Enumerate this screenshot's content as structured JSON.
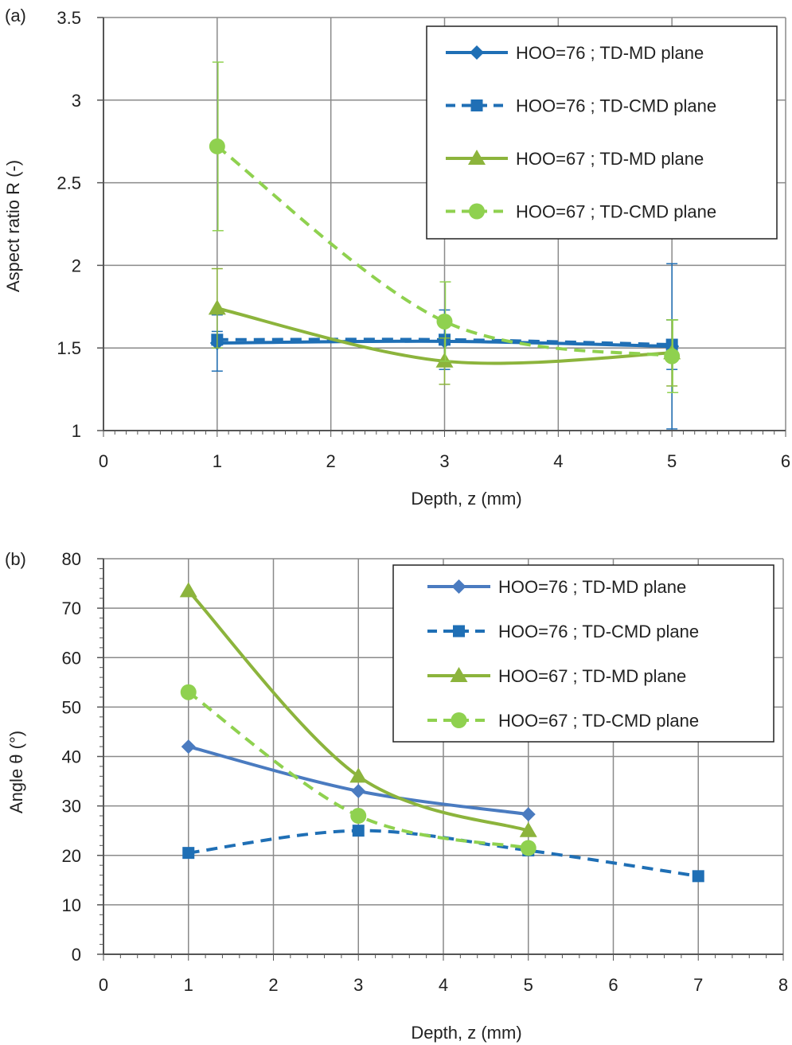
{
  "chart_data": [
    {
      "panel_label": "(a)",
      "type": "line",
      "xlabel": "Depth, z (mm)",
      "ylabel": "Aspect ratio R (-)",
      "xlim": [
        0,
        6
      ],
      "ylim": [
        1,
        3.5
      ],
      "xticks": [
        "0",
        "1",
        "2",
        "3",
        "4",
        "5",
        "6"
      ],
      "yticks": [
        "1",
        "1.5",
        "2",
        "2.5",
        "3",
        "3.5"
      ],
      "grid": true,
      "legend_position": "top-right",
      "series": [
        {
          "name": "HOO=76 ; TD-MD plane",
          "x": [
            1,
            3,
            5
          ],
          "y": [
            1.53,
            1.54,
            1.51
          ],
          "yerr": [
            0.17,
            0.15,
            0.5
          ],
          "color": "#1f6fb5",
          "dash": "solid",
          "marker": "diamond"
        },
        {
          "name": "HOO=76 ; TD-CMD plane",
          "x": [
            1,
            3,
            5
          ],
          "y": [
            1.55,
            1.55,
            1.52
          ],
          "yerr": [
            0.05,
            0.18,
            0.15
          ],
          "color": "#1f6fb5",
          "dash": "dashed",
          "marker": "square"
        },
        {
          "name": "HOO=67 ; TD-MD plane",
          "x": [
            1,
            3,
            5
          ],
          "y": [
            1.74,
            1.42,
            1.47
          ],
          "yerr": [
            0.24,
            0.14,
            0.2
          ],
          "color": "#8cb43c",
          "dash": "solid",
          "marker": "triangle"
        },
        {
          "name": "HOO=67 ; TD-CMD plane",
          "x": [
            1,
            3,
            5
          ],
          "y": [
            2.72,
            1.66,
            1.45
          ],
          "yerr": [
            0.51,
            0.24,
            0.22
          ],
          "color": "#8fd14f",
          "dash": "dashed",
          "marker": "circle"
        }
      ]
    },
    {
      "panel_label": "(b)",
      "type": "line",
      "xlabel": "Depth, z (mm)",
      "ylabel": "Angle θ (°)",
      "xlim": [
        0,
        8
      ],
      "ylim": [
        0,
        80
      ],
      "xticks": [
        "0",
        "1",
        "2",
        "3",
        "4",
        "5",
        "6",
        "7",
        "8"
      ],
      "yticks": [
        "0",
        "10",
        "20",
        "30",
        "40",
        "50",
        "60",
        "70",
        "80"
      ],
      "grid": true,
      "legend_position": "top-right",
      "series": [
        {
          "name": "HOO=76 ; TD-MD plane",
          "x": [
            1,
            3,
            5
          ],
          "y": [
            42,
            33,
            28.3
          ],
          "color": "#4a7bc0",
          "dash": "solid",
          "marker": "diamond"
        },
        {
          "name": "HOO=76 ; TD-CMD plane",
          "x": [
            1,
            3,
            5,
            7
          ],
          "y": [
            20.5,
            25,
            21,
            15.8
          ],
          "color": "#1f6fb5",
          "dash": "dashed",
          "marker": "square"
        },
        {
          "name": "HOO=67 ; TD-MD plane",
          "x": [
            1,
            3,
            5
          ],
          "y": [
            73.5,
            36,
            25
          ],
          "color": "#8cb43c",
          "dash": "solid",
          "marker": "triangle"
        },
        {
          "name": "HOO=67 ; TD-CMD plane",
          "x": [
            1,
            3,
            5
          ],
          "y": [
            53,
            28,
            21.5
          ],
          "color": "#8fd14f",
          "dash": "dashed",
          "marker": "circle"
        }
      ]
    }
  ]
}
